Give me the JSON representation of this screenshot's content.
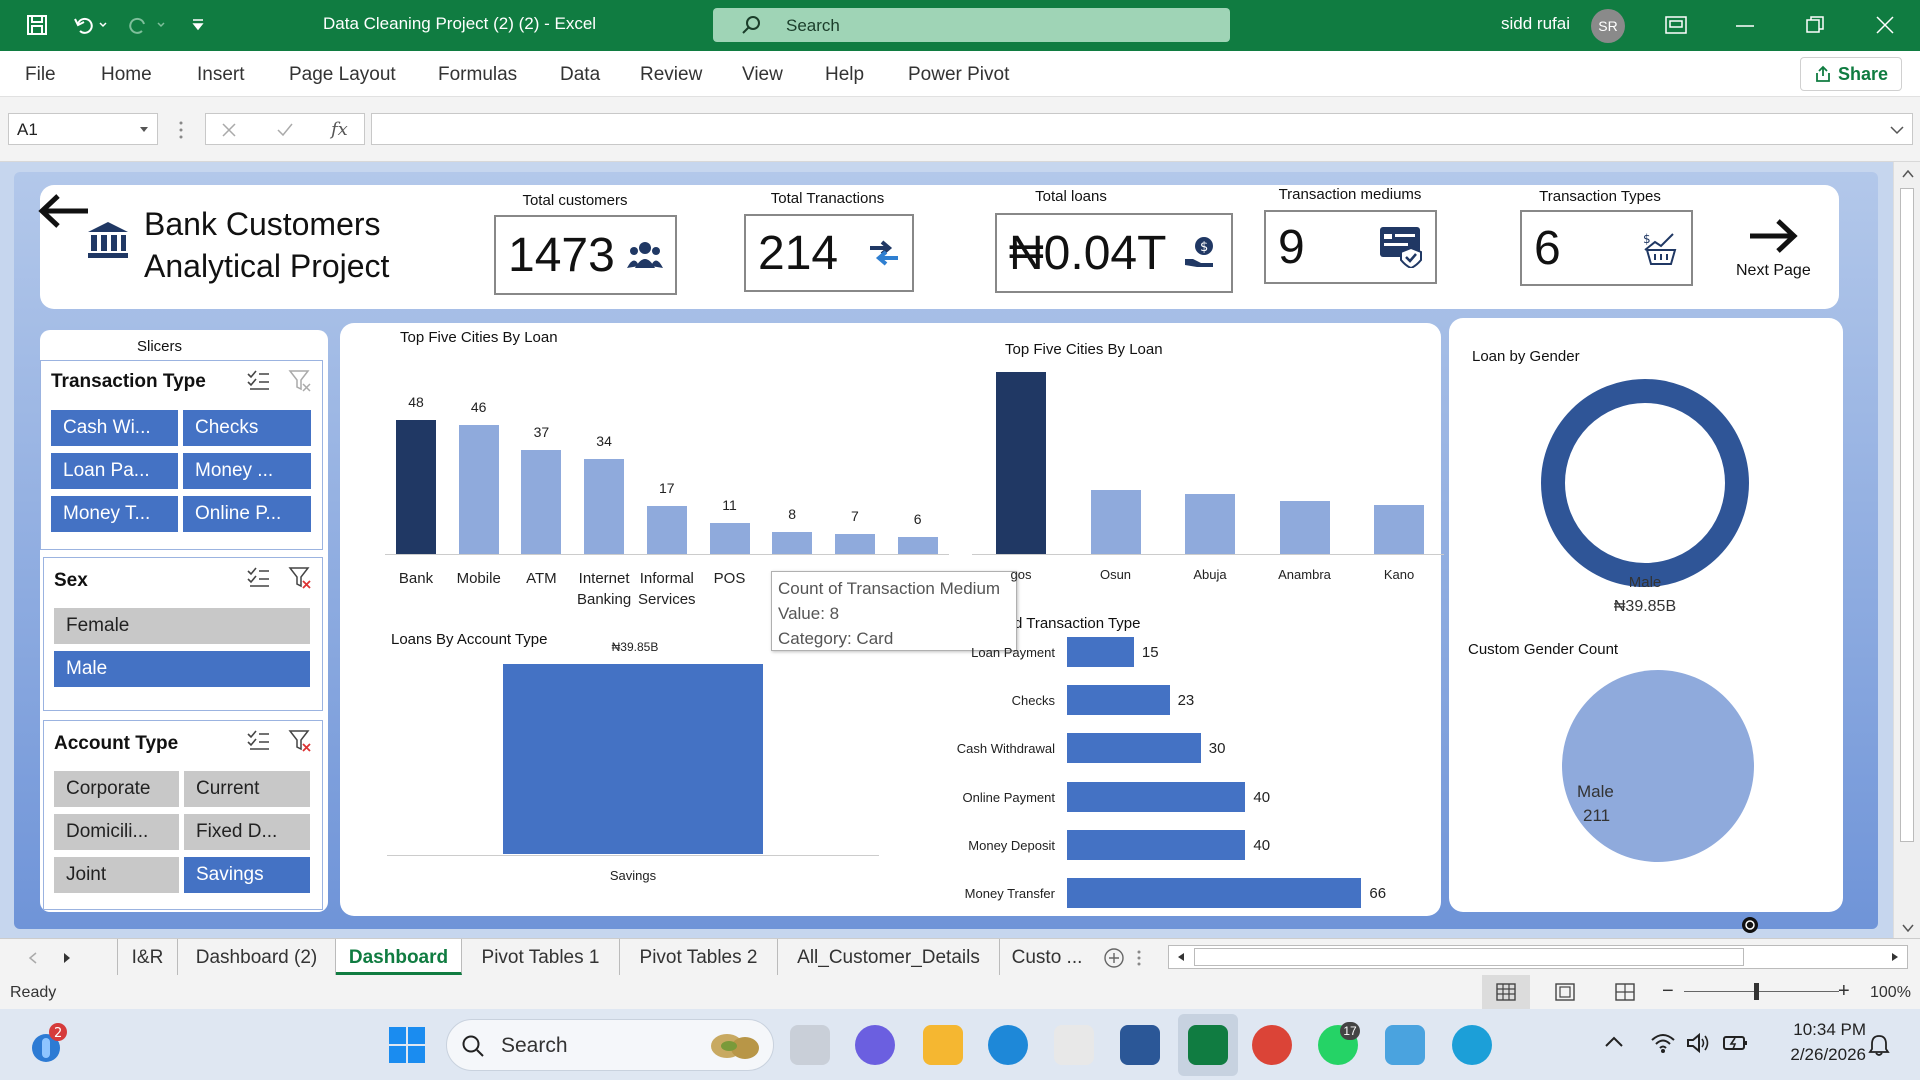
{
  "titlebar": {
    "file_title": "Data Cleaning Project (2) (2)  -  Excel",
    "search_placeholder": "Search",
    "user": "sidd rufai",
    "initials": "SR"
  },
  "ribbon": {
    "tabs": [
      "File",
      "Home",
      "Insert",
      "Page Layout",
      "Formulas",
      "Data",
      "Review",
      "View",
      "Help",
      "Power Pivot"
    ],
    "share": "Share"
  },
  "formula_bar": {
    "name_box": "A1",
    "fx": "fx",
    "formula": ""
  },
  "dashboard": {
    "title_line1": "Bank Customers",
    "title_line2": "Analytical Project",
    "next_page": "Next Page",
    "kpis": [
      {
        "label": "Total customers",
        "value": "1473",
        "icon": "people-icon"
      },
      {
        "label": "Total Tranactions",
        "value": "214",
        "icon": "arrows-icon"
      },
      {
        "label": "Total loans",
        "value": "₦0.04T",
        "icon": "money-hand-icon"
      },
      {
        "label": "Transaction mediums",
        "value": "9",
        "icon": "card-check-icon"
      },
      {
        "label": "Transaction Types",
        "value": "6",
        "icon": "chart-basket-icon"
      }
    ],
    "slicers": {
      "heading": "Slicers",
      "transaction_type": {
        "title": "Transaction Type",
        "items": [
          {
            "label": "Cash Wi...",
            "selected": true
          },
          {
            "label": "Checks",
            "selected": true
          },
          {
            "label": "Loan Pa...",
            "selected": true
          },
          {
            "label": "Money ...",
            "selected": true
          },
          {
            "label": "Money T...",
            "selected": true
          },
          {
            "label": "Online P...",
            "selected": true
          }
        ]
      },
      "sex": {
        "title": "Sex",
        "items": [
          {
            "label": "Female",
            "selected": false
          },
          {
            "label": "Male",
            "selected": true
          }
        ]
      },
      "account_type": {
        "title": "Account Type",
        "items": [
          {
            "label": "Corporate",
            "selected": false
          },
          {
            "label": "Current",
            "selected": false
          },
          {
            "label": "Domicili...",
            "selected": false
          },
          {
            "label": "Fixed D...",
            "selected": false
          },
          {
            "label": "Joint",
            "selected": false
          },
          {
            "label": "Savings",
            "selected": true
          }
        ]
      }
    },
    "tooltip": {
      "line1": "Count of Transaction Medium",
      "line2": "Value: 8",
      "line3": "Category: Card"
    }
  },
  "chart_data": [
    {
      "type": "bar",
      "title": "Top Five Cities By Loan",
      "categories": [
        "Bank",
        "Mobile",
        "ATM",
        "Internet Banking",
        "Informal Services",
        "POS",
        "Card",
        "",
        ""
      ],
      "values": [
        48,
        46,
        37,
        34,
        17,
        11,
        8,
        7,
        6
      ],
      "label_line1": [
        "Bank",
        "Mobile",
        "ATM",
        "Internet",
        "Informal",
        "POS",
        "",
        "",
        ""
      ],
      "label_line2": [
        "",
        "",
        "",
        "Banking",
        "Services",
        "",
        "",
        "",
        ""
      ],
      "colors": {
        "highlight": "#203864",
        "normal": "#8faadc"
      }
    },
    {
      "type": "bar",
      "title": "Top Five Cities By Loan",
      "categories": [
        "Lagos",
        "Osun",
        "Abuja",
        "Anambra",
        "Kano"
      ],
      "first_label_visible": "gos",
      "values": [
        100,
        35,
        33,
        29,
        27
      ],
      "colors": {
        "highlight": "#203864",
        "normal": "#8faadc"
      }
    },
    {
      "type": "bar",
      "title": "Loans By Account Type",
      "categories": [
        "Savings"
      ],
      "values": [
        39.85
      ],
      "data_labels": [
        "₦39.85B"
      ],
      "color": "#4472c4"
    },
    {
      "type": "bar",
      "title": "d Transaction Type",
      "orientation": "horizontal",
      "categories": [
        "Loan Payment",
        "Checks",
        "Cash Withdrawal",
        "Online Payment",
        "Money Deposit",
        "Money Transfer"
      ],
      "category_labels": [
        "Loan Payment",
        "Checks",
        "Cash Withdrawal",
        "Online Payment",
        "Money Deposit",
        "Money Transfer"
      ],
      "values": [
        15,
        23,
        30,
        40,
        40,
        66
      ],
      "color": "#4472c4"
    },
    {
      "type": "pie",
      "title": "Loan by Gender",
      "subtype": "donut",
      "series": [
        {
          "name": "Male",
          "value": "₦39.85B"
        }
      ],
      "label": "Male",
      "value_label": "₦39.85B",
      "color": "#2f5597"
    },
    {
      "type": "pie",
      "title": "Custom Gender Count",
      "series": [
        {
          "name": "Male",
          "value": 211
        }
      ],
      "label": "Male",
      "value_label": "211",
      "color": "#8faadc"
    }
  ],
  "sheet_tabs": [
    "I&R",
    "Dashboard (2)",
    "Dashboard",
    "Pivot Tables 1",
    "Pivot Tables 2",
    "All_Customer_Details",
    "Custo ..."
  ],
  "active_tab": "Dashboard",
  "status": {
    "ready": "Ready",
    "zoom": "100%"
  },
  "taskbar": {
    "search": "Search",
    "time": "10:34 PM",
    "date": "2/26/2026",
    "notif_badge": "2",
    "whatsapp_badge": "17"
  }
}
